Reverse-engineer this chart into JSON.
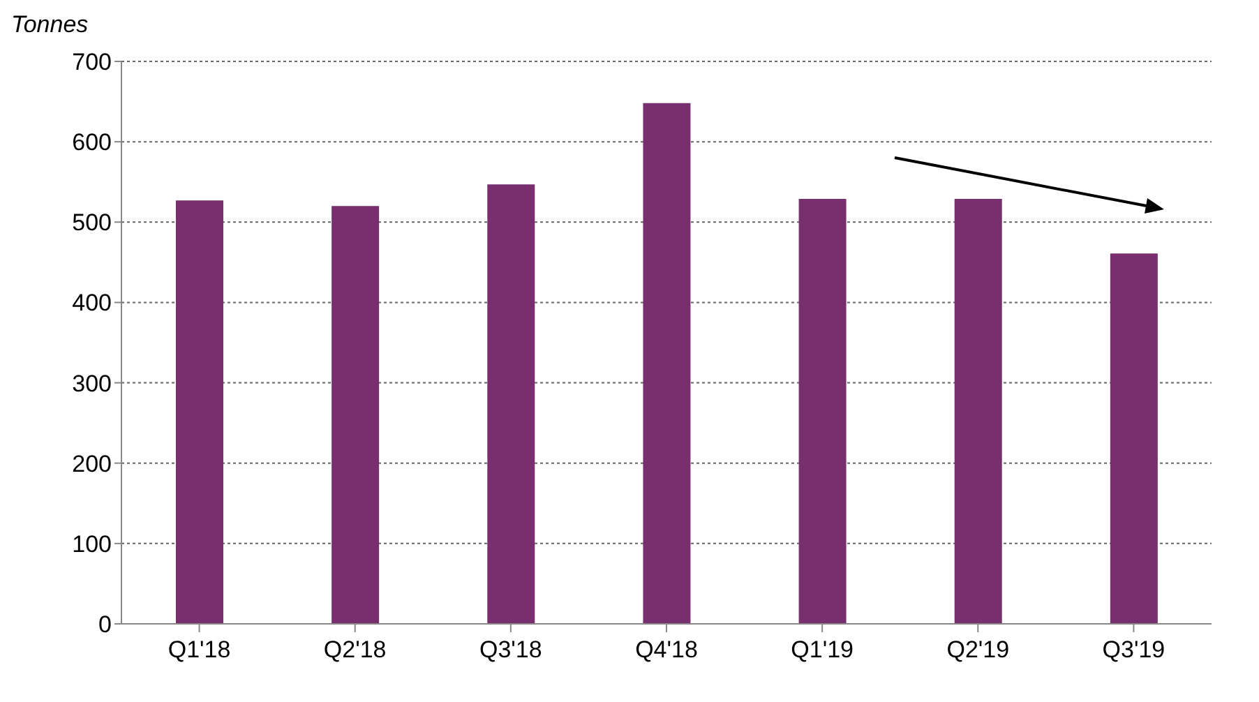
{
  "chart_data": {
    "type": "bar",
    "ylabel": "Tonnes",
    "categories": [
      "Q1'18",
      "Q2'18",
      "Q3'18",
      "Q4'18",
      "Q1'19",
      "Q2'19",
      "Q3'19"
    ],
    "values": [
      527,
      520,
      547,
      648,
      529,
      529,
      461
    ],
    "color": "#772f6e",
    "ylim": [
      0,
      700
    ],
    "yticks": [
      0,
      100,
      200,
      300,
      400,
      500,
      600,
      700
    ],
    "grid": "y"
  }
}
